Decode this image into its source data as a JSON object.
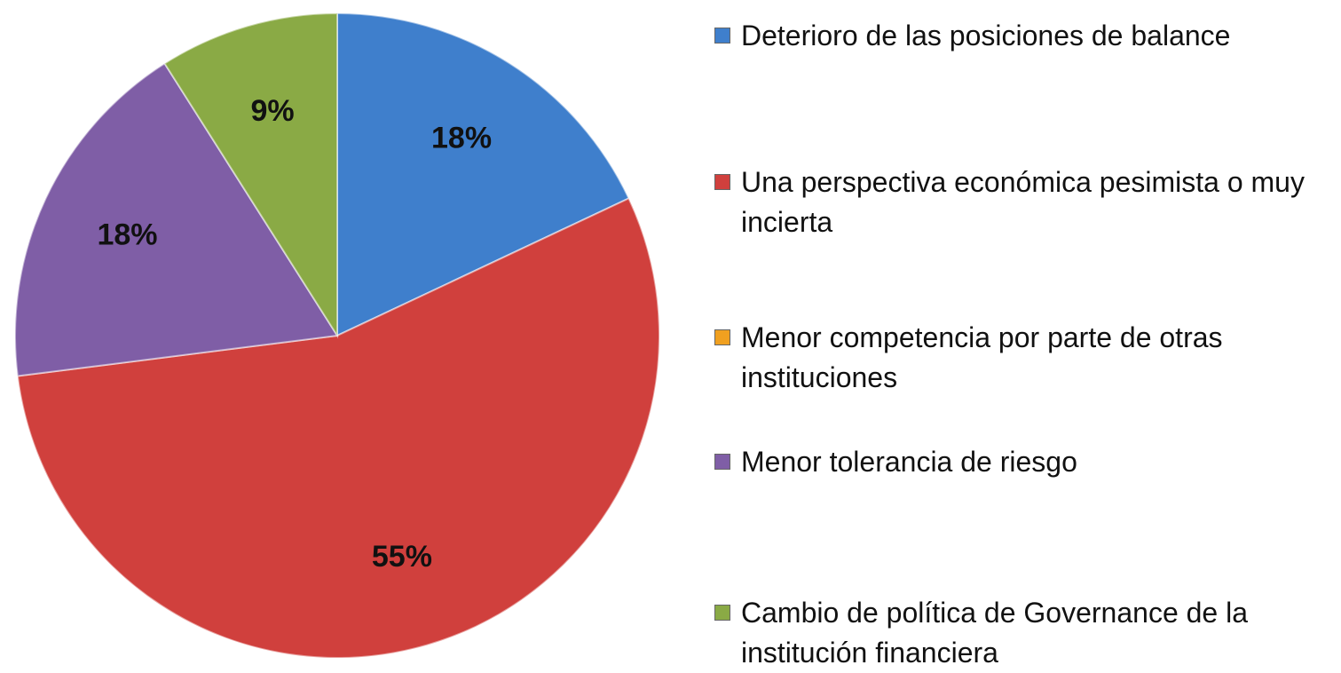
{
  "chart_data": {
    "type": "pie",
    "categories": [
      "Deterioro de las posiciones de balance",
      "Una perspectiva económica pesimista o muy incierta",
      "Menor competencia por parte de otras instituciones",
      "Menor tolerancia de riesgo",
      "Cambio de política de Governance de la institución financiera"
    ],
    "values": [
      18,
      55,
      0,
      18,
      9
    ],
    "value_labels": [
      "18%",
      "55%",
      null,
      "18%",
      "9%"
    ],
    "colors": [
      "#3f7fcc",
      "#d0403d",
      "#f0a020",
      "#7f5ea6",
      "#8aaa45"
    ],
    "legend": "right"
  }
}
